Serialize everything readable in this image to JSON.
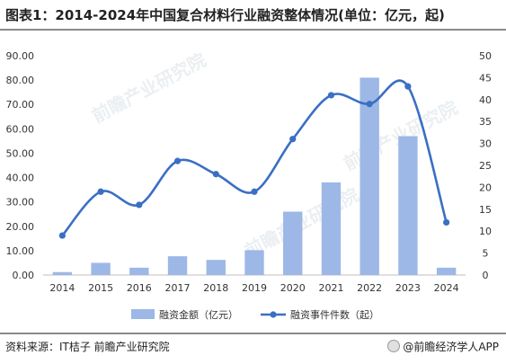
{
  "title": "图表1：2014-2024年中国复合材料行业融资整体情况(单位：亿元，起)",
  "watermark": "前瞻产业研究院",
  "source": "资料来源：IT桔子 前瞻产业研究院",
  "brand": "@前瞻经济学人APP",
  "colors": {
    "bar": "#9db7e6",
    "line": "#3a6fc4"
  },
  "chart_data": {
    "type": "bar+line",
    "categories": [
      "2014",
      "2015",
      "2016",
      "2017",
      "2018",
      "2019",
      "2020",
      "2021",
      "2022",
      "2023",
      "2024"
    ],
    "series": [
      {
        "name": "融资金额（亿元）",
        "type": "bar",
        "axis": "left",
        "values": [
          1.2,
          5.0,
          3.0,
          7.7,
          6.2,
          10.2,
          26.0,
          38.0,
          81.0,
          57.0,
          3.0
        ]
      },
      {
        "name": "融资事件件数（起）",
        "type": "line",
        "axis": "right",
        "values": [
          9,
          19,
          16,
          26,
          23,
          19,
          31,
          41,
          39,
          43,
          12
        ]
      }
    ],
    "y_left": {
      "min": 0,
      "max": 90,
      "step": 10,
      "ticks": [
        "0.00",
        "10.00",
        "20.00",
        "30.00",
        "40.00",
        "50.00",
        "60.00",
        "70.00",
        "80.00",
        "90.00"
      ]
    },
    "y_right": {
      "min": 0,
      "max": 50,
      "step": 5,
      "ticks": [
        "0",
        "5",
        "10",
        "15",
        "20",
        "25",
        "30",
        "35",
        "40",
        "45",
        "50"
      ]
    },
    "legend_position": "bottom"
  }
}
